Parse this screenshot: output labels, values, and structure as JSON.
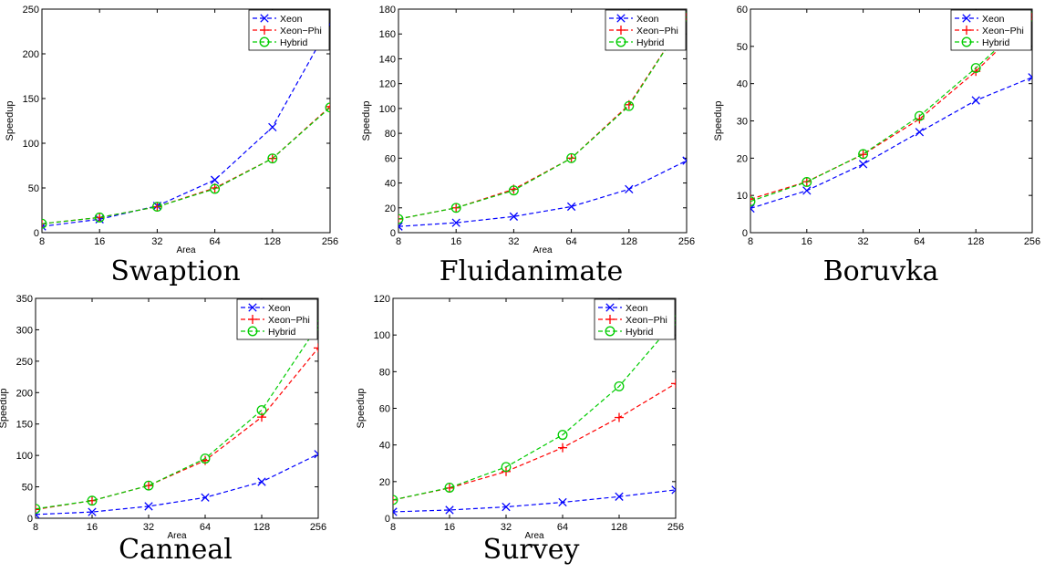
{
  "chart_data": [
    {
      "type": "line",
      "caption": "Swaption",
      "xlabel": "Area",
      "ylabel": "Speedup",
      "x": [
        8,
        16,
        32,
        64,
        128,
        256
      ],
      "xscale": "log2",
      "ylim": [
        0,
        250
      ],
      "yticks": [
        0,
        50,
        100,
        150,
        200,
        250
      ],
      "legend": "top-right",
      "series": [
        {
          "name": "Xeon",
          "values": [
            7,
            15,
            30,
            59,
            118,
            233
          ],
          "color": "#0000ff",
          "marker": "x"
        },
        {
          "name": "Xeon−Phi",
          "values": [
            10,
            17,
            29,
            50,
            83,
            141
          ],
          "color": "#ff0000",
          "marker": "+"
        },
        {
          "name": "Hybrid",
          "values": [
            10,
            17,
            29,
            49,
            83,
            140
          ],
          "color": "#00cc00",
          "marker": "o"
        }
      ]
    },
    {
      "type": "line",
      "caption": "Fluidanimate",
      "xlabel": "Area",
      "ylabel": "Speedup",
      "x": [
        8,
        16,
        32,
        64,
        128,
        256
      ],
      "xscale": "log2",
      "ylim": [
        0,
        180
      ],
      "yticks": [
        0,
        20,
        40,
        60,
        80,
        100,
        120,
        140,
        160,
        180
      ],
      "legend": "top-right",
      "series": [
        {
          "name": "Xeon",
          "values": [
            5,
            8,
            13,
            21,
            35,
            58
          ],
          "color": "#0000ff",
          "marker": "x"
        },
        {
          "name": "Xeon−Phi",
          "values": [
            11,
            20,
            35,
            60,
            103,
            174
          ],
          "color": "#ff0000",
          "marker": "+"
        },
        {
          "name": "Hybrid",
          "values": [
            11,
            20,
            34,
            60,
            102,
            174
          ],
          "color": "#00cc00",
          "marker": "o"
        }
      ]
    },
    {
      "type": "line",
      "caption": "Boruvka",
      "xlabel": "",
      "ylabel": "Speedup",
      "x": [
        8,
        16,
        32,
        64,
        128,
        256
      ],
      "xscale": "log2",
      "ylim": [
        0,
        60
      ],
      "yticks": [
        0,
        10,
        20,
        30,
        40,
        50,
        60
      ],
      "legend": "top-right",
      "series": [
        {
          "name": "Xeon",
          "values": [
            6.5,
            11.3,
            18.4,
            27,
            35.5,
            41.7
          ],
          "color": "#0000ff",
          "marker": "x"
        },
        {
          "name": "Xeon−Phi",
          "values": [
            9,
            13.7,
            21,
            30.5,
            43.3,
            58
          ],
          "color": "#ff0000",
          "marker": "+"
        },
        {
          "name": "Hybrid",
          "values": [
            8.4,
            13.6,
            21.1,
            31.3,
            44.2,
            58
          ],
          "color": "#00cc00",
          "marker": "o"
        }
      ]
    },
    {
      "type": "line",
      "caption": "Canneal",
      "xlabel": "Area",
      "ylabel": "Speedup",
      "x": [
        8,
        16,
        32,
        64,
        128,
        256
      ],
      "xscale": "log2",
      "ylim": [
        0,
        350
      ],
      "yticks": [
        0,
        50,
        100,
        150,
        200,
        250,
        300,
        350
      ],
      "legend": "top-right",
      "series": [
        {
          "name": "Xeon",
          "values": [
            6,
            10,
            19,
            33,
            58,
            102
          ],
          "color": "#0000ff",
          "marker": "x"
        },
        {
          "name": "Xeon−Phi",
          "values": [
            14,
            28,
            52,
            92,
            161,
            271
          ],
          "color": "#ff0000",
          "marker": "+"
        },
        {
          "name": "Hybrid",
          "values": [
            15,
            28,
            52,
            95,
            172,
            307
          ],
          "color": "#00cc00",
          "marker": "o"
        }
      ]
    },
    {
      "type": "line",
      "caption": "Survey",
      "xlabel": "Area",
      "ylabel": "Speedup",
      "x": [
        8,
        16,
        32,
        64,
        128,
        256
      ],
      "xscale": "log2",
      "ylim": [
        0,
        120
      ],
      "yticks": [
        0,
        20,
        40,
        60,
        80,
        100,
        120
      ],
      "legend": "top-right",
      "series": [
        {
          "name": "Xeon",
          "values": [
            3.5,
            4.5,
            6.2,
            8.7,
            11.8,
            15.5
          ],
          "color": "#0000ff",
          "marker": "x"
        },
        {
          "name": "Xeon−Phi",
          "values": [
            10,
            16.5,
            25.5,
            38.5,
            55,
            73.5
          ],
          "color": "#ff0000",
          "marker": "+"
        },
        {
          "name": "Hybrid",
          "values": [
            10,
            16.7,
            28,
            45.5,
            72,
            108
          ],
          "color": "#00cc00",
          "marker": "o"
        }
      ]
    }
  ]
}
